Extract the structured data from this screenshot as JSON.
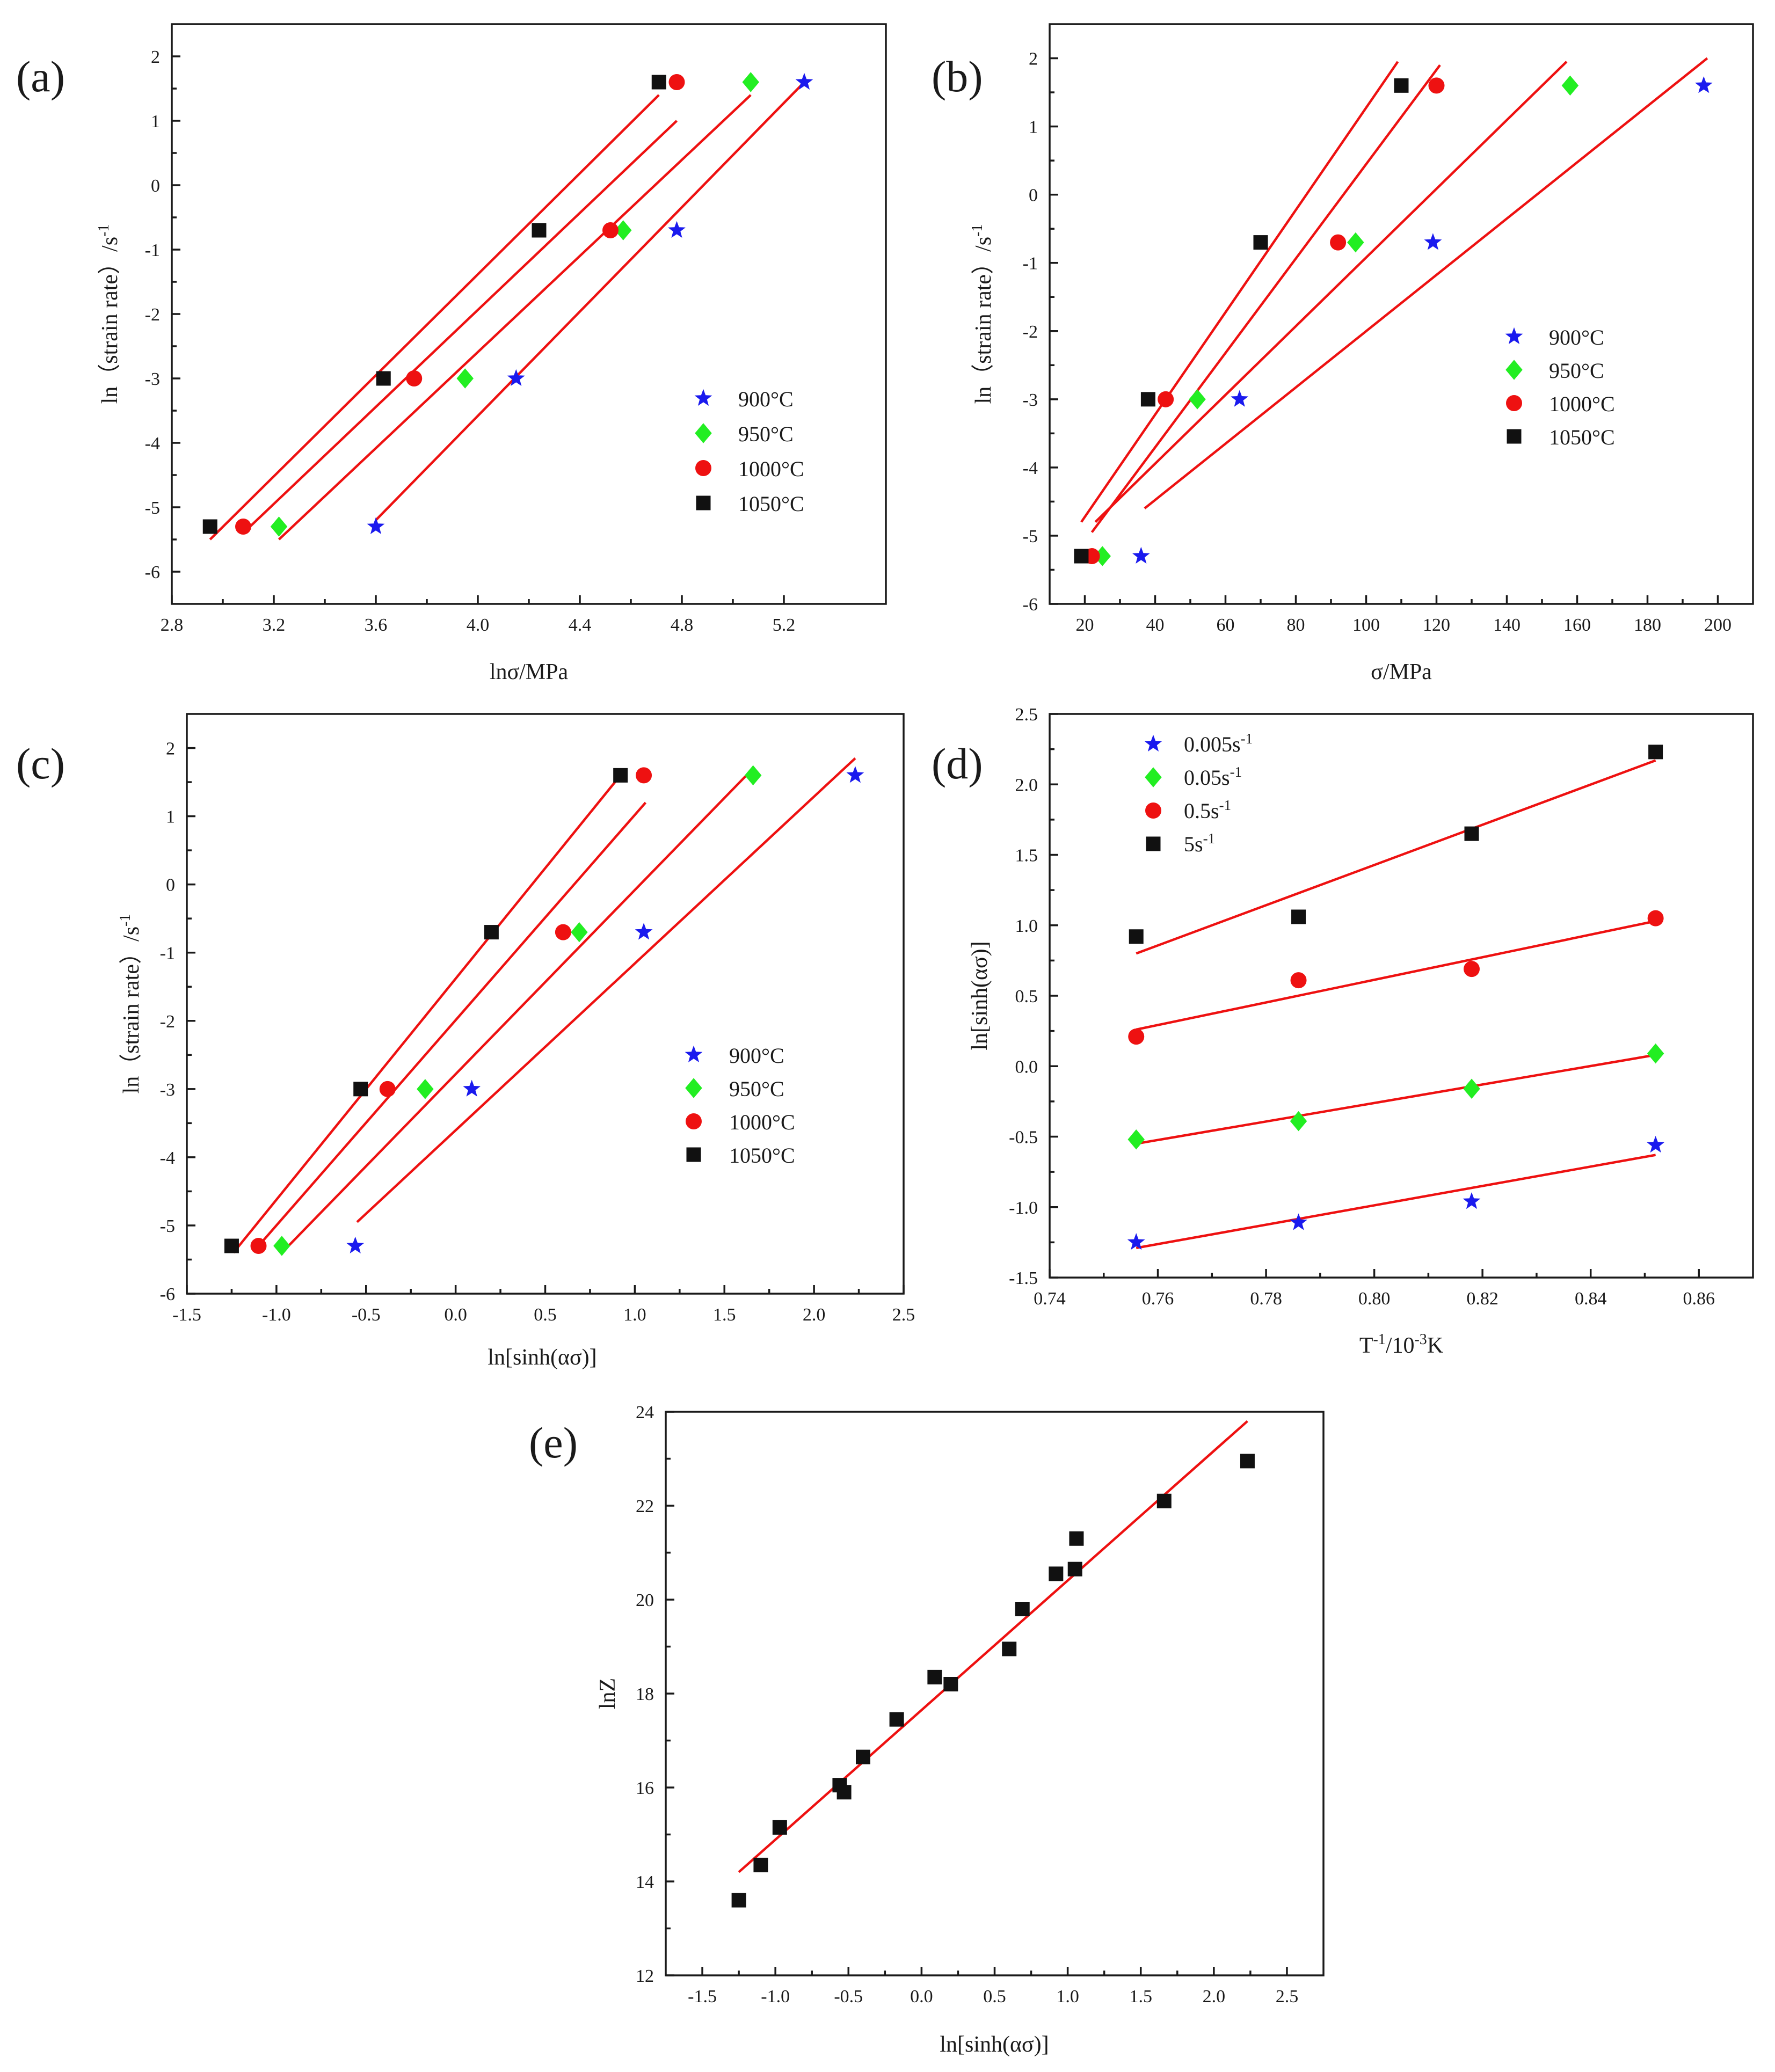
{
  "colors": {
    "fit_line": "#ee1111",
    "blue": "#1a1aee",
    "green": "#22ee22",
    "red": "#ee1111",
    "black": "#111111",
    "frame": "#1a1a1a"
  },
  "chart_data": [
    {
      "panel": "(a)",
      "type": "scatter",
      "xlabel": "lnσ/MPa",
      "ylabel": "ln（strain rate）/s",
      "ylabel_sup": "-1",
      "xlim": [
        2.8,
        5.6
      ],
      "ylim": [
        -6.5,
        2.5
      ],
      "xticks": [
        2.8,
        3.2,
        3.6,
        4.0,
        4.4,
        4.8,
        5.2
      ],
      "xtick_labels": [
        "2.8",
        "3.2",
        "3.6",
        "4.0",
        "4.4",
        "4.8",
        "5.2"
      ],
      "yticks": [
        -6,
        -5,
        -4,
        -3,
        -2,
        -1,
        0,
        1,
        2
      ],
      "ytick_labels": [
        "-6",
        "-5",
        "-4",
        "-3",
        "-2",
        "-1",
        "0",
        "1",
        "2"
      ],
      "series": [
        {
          "name": "900°C",
          "marker": "star",
          "color": "#1a1aee",
          "x": [
            3.6,
            4.15,
            4.78,
            5.28
          ],
          "y": [
            -5.3,
            -3.0,
            -0.7,
            1.6
          ],
          "fit": [
            [
              3.6,
              -5.2
            ],
            [
              5.28,
              1.6
            ]
          ]
        },
        {
          "name": "950°C",
          "marker": "diamond",
          "color": "#22ee22",
          "x": [
            3.22,
            3.95,
            4.57,
            5.07
          ],
          "y": [
            -5.3,
            -3.0,
            -0.7,
            1.6
          ],
          "fit": [
            [
              3.22,
              -5.5
            ],
            [
              5.07,
              1.4
            ]
          ]
        },
        {
          "name": "1000°C",
          "marker": "circle",
          "color": "#ee1111",
          "x": [
            3.08,
            3.75,
            4.52,
            4.78
          ],
          "y": [
            -5.3,
            -3.0,
            -0.7,
            1.6
          ],
          "fit": [
            [
              3.08,
              -5.4
            ],
            [
              4.78,
              1.0
            ]
          ]
        },
        {
          "name": "1050°C",
          "marker": "square",
          "color": "#111111",
          "x": [
            2.95,
            3.63,
            4.24,
            4.71
          ],
          "y": [
            -5.3,
            -3.0,
            -0.7,
            1.6
          ],
          "fit": [
            [
              2.95,
              -5.5
            ],
            [
              4.71,
              1.4
            ]
          ]
        }
      ]
    },
    {
      "panel": "(b)",
      "type": "scatter",
      "xlabel": "σ/MPa",
      "ylabel": "ln（strain rate）/s",
      "ylabel_sup": "-1",
      "xlim": [
        10,
        210
      ],
      "ylim": [
        -6,
        2.5
      ],
      "xticks": [
        20,
        40,
        60,
        80,
        100,
        120,
        140,
        160,
        180,
        200
      ],
      "xtick_labels": [
        "20",
        "40",
        "60",
        "80",
        "100",
        "120",
        "140",
        "160",
        "180",
        "200"
      ],
      "yticks": [
        -6,
        -5,
        -4,
        -3,
        -2,
        -1,
        0,
        1,
        2
      ],
      "ytick_labels": [
        "-6",
        "-5",
        "-4",
        "-3",
        "-2",
        "-1",
        "0",
        "1",
        "2"
      ],
      "series": [
        {
          "name": "900°C",
          "marker": "star",
          "color": "#1a1aee",
          "x": [
            36,
            64,
            119,
            196
          ],
          "y": [
            -5.3,
            -3.0,
            -0.7,
            1.6
          ],
          "fit": [
            [
              37,
              -4.6
            ],
            [
              197,
              2.0
            ]
          ]
        },
        {
          "name": "950°C",
          "marker": "diamond",
          "color": "#22ee22",
          "x": [
            25,
            52,
            97,
            158
          ],
          "y": [
            -5.3,
            -3.0,
            -0.7,
            1.6
          ],
          "fit": [
            [
              23,
              -4.8
            ],
            [
              157,
              1.95
            ]
          ]
        },
        {
          "name": "1000°C",
          "marker": "circle",
          "color": "#ee1111",
          "x": [
            22,
            43,
            92,
            120
          ],
          "y": [
            -5.3,
            -3.0,
            -0.7,
            1.6
          ],
          "fit": [
            [
              22,
              -4.95
            ],
            [
              121,
              1.9
            ]
          ]
        },
        {
          "name": "1050°C",
          "marker": "square",
          "color": "#111111",
          "x": [
            19,
            38,
            70,
            110
          ],
          "y": [
            -5.3,
            -3.0,
            -0.7,
            1.6
          ],
          "fit": [
            [
              19,
              -4.8
            ],
            [
              109,
              1.95
            ]
          ]
        }
      ]
    },
    {
      "panel": "(c)",
      "type": "scatter",
      "xlabel": "ln[sinh(ασ)]",
      "ylabel": "ln（strain rate）/s",
      "ylabel_sup": "-1",
      "xlim": [
        -1.5,
        2.5
      ],
      "ylim": [
        -6,
        2.5
      ],
      "xticks": [
        -1.5,
        -1.0,
        -0.5,
        0.0,
        0.5,
        1.0,
        1.5,
        2.0,
        2.5
      ],
      "xtick_labels": [
        "-1.5",
        "-1.0",
        "-0.5",
        "0.0",
        "0.5",
        "1.0",
        "1.5",
        "2.0",
        "2.5"
      ],
      "yticks": [
        -6,
        -5,
        -4,
        -3,
        -2,
        -1,
        0,
        1,
        2
      ],
      "ytick_labels": [
        "-6",
        "-5",
        "-4",
        "-3",
        "-2",
        "-1",
        "0",
        "1",
        "2"
      ],
      "series": [
        {
          "name": "900°C",
          "marker": "star",
          "color": "#1a1aee",
          "x": [
            -0.56,
            0.09,
            1.05,
            2.23
          ],
          "y": [
            -5.3,
            -3.0,
            -0.7,
            1.6
          ],
          "fit": [
            [
              -0.55,
              -4.95
            ],
            [
              2.23,
              1.85
            ]
          ]
        },
        {
          "name": "950°C",
          "marker": "diamond",
          "color": "#22ee22",
          "x": [
            -0.97,
            -0.17,
            0.69,
            1.66
          ],
          "y": [
            -5.3,
            -3.0,
            -0.7,
            1.6
          ],
          "fit": [
            [
              -0.97,
              -5.4
            ],
            [
              1.66,
              1.7
            ]
          ]
        },
        {
          "name": "1000°C",
          "marker": "circle",
          "color": "#ee1111",
          "x": [
            -1.1,
            -0.38,
            0.6,
            1.05
          ],
          "y": [
            -5.3,
            -3.0,
            -0.7,
            1.6
          ],
          "fit": [
            [
              -1.1,
              -5.3
            ],
            [
              1.06,
              1.2
            ]
          ]
        },
        {
          "name": "1050°C",
          "marker": "square",
          "color": "#111111",
          "x": [
            -1.25,
            -0.53,
            0.2,
            0.92
          ],
          "y": [
            -5.3,
            -3.0,
            -0.7,
            1.6
          ],
          "fit": [
            [
              -1.24,
              -5.4
            ],
            [
              0.92,
              1.6
            ]
          ]
        }
      ]
    },
    {
      "panel": "(d)",
      "type": "scatter",
      "xlabel": "T",
      "xlabel_sup1": "-1",
      "xlabel_mid": "/10",
      "xlabel_sup2": "-3",
      "xlabel_end": "K",
      "ylabel": "ln[sinh(ασ)]",
      "xlim": [
        0.74,
        0.87
      ],
      "ylim": [
        -1.5,
        2.5
      ],
      "xticks": [
        0.74,
        0.76,
        0.78,
        0.8,
        0.82,
        0.84,
        0.86
      ],
      "xtick_labels": [
        "0.74",
        "0.76",
        "0.78",
        "0.80",
        "0.82",
        "0.84",
        "0.86"
      ],
      "yticks": [
        -1.5,
        -1.0,
        -0.5,
        0.0,
        0.5,
        1.0,
        1.5,
        2.0,
        2.5
      ],
      "ytick_labels": [
        "-1.5",
        "-1.0",
        "-0.5",
        "0.0",
        "0.5",
        "1.0",
        "1.5",
        "2.0",
        "2.5"
      ],
      "series": [
        {
          "name": "0.005s",
          "name_sup": "-1",
          "marker": "star",
          "color": "#1a1aee",
          "x": [
            0.756,
            0.786,
            0.818,
            0.852
          ],
          "y": [
            -1.25,
            -1.11,
            -0.96,
            -0.56
          ],
          "fit": [
            [
              0.756,
              -1.29
            ],
            [
              0.852,
              -0.63
            ]
          ]
        },
        {
          "name": "0.05s",
          "name_sup": "-1",
          "marker": "diamond",
          "color": "#22ee22",
          "x": [
            0.756,
            0.786,
            0.818,
            0.852
          ],
          "y": [
            -0.52,
            -0.39,
            -0.16,
            0.09
          ],
          "fit": [
            [
              0.756,
              -0.55
            ],
            [
              0.852,
              0.08
            ]
          ]
        },
        {
          "name": "0.5s",
          "name_sup": "-1",
          "marker": "circle",
          "color": "#ee1111",
          "x": [
            0.756,
            0.786,
            0.818,
            0.852
          ],
          "y": [
            0.21,
            0.61,
            0.69,
            1.05
          ],
          "fit": [
            [
              0.756,
              0.26
            ],
            [
              0.852,
              1.03
            ]
          ]
        },
        {
          "name": "5s",
          "name_sup": "-1",
          "marker": "square",
          "color": "#111111",
          "x": [
            0.756,
            0.786,
            0.818,
            0.852
          ],
          "y": [
            0.92,
            1.06,
            1.65,
            2.23
          ],
          "fit": [
            [
              0.756,
              0.8
            ],
            [
              0.852,
              2.17
            ]
          ]
        }
      ]
    },
    {
      "panel": "(e)",
      "type": "scatter",
      "xlabel": "ln[sinh(ασ)]",
      "ylabel": "lnZ",
      "xlim": [
        -1.75,
        2.75
      ],
      "ylim": [
        12,
        24
      ],
      "xticks": [
        -1.5,
        -1.0,
        -0.5,
        0.0,
        0.5,
        1.0,
        1.5,
        2.0,
        2.5
      ],
      "xtick_labels": [
        "-1.5",
        "-1.0",
        "-0.5",
        "0.0",
        "0.5",
        "1.0",
        "1.5",
        "2.0",
        "2.5"
      ],
      "yticks": [
        12,
        14,
        16,
        18,
        20,
        22,
        24
      ],
      "ytick_labels": [
        "12",
        "14",
        "16",
        "18",
        "20",
        "22",
        "24"
      ],
      "series": [
        {
          "name": "",
          "marker": "square",
          "color": "#111111",
          "x": [
            -1.25,
            -1.1,
            -0.97,
            -0.56,
            -0.53,
            -0.4,
            -0.17,
            0.09,
            0.2,
            0.6,
            0.69,
            0.92,
            1.05,
            1.06,
            1.66,
            2.23
          ],
          "y": [
            13.6,
            14.35,
            15.15,
            16.05,
            15.9,
            16.65,
            17.45,
            18.35,
            18.2,
            18.95,
            19.8,
            20.55,
            20.65,
            21.3,
            22.1,
            22.95
          ],
          "fit": [
            [
              -1.25,
              14.2
            ],
            [
              2.23,
              23.8
            ]
          ]
        }
      ]
    }
  ]
}
